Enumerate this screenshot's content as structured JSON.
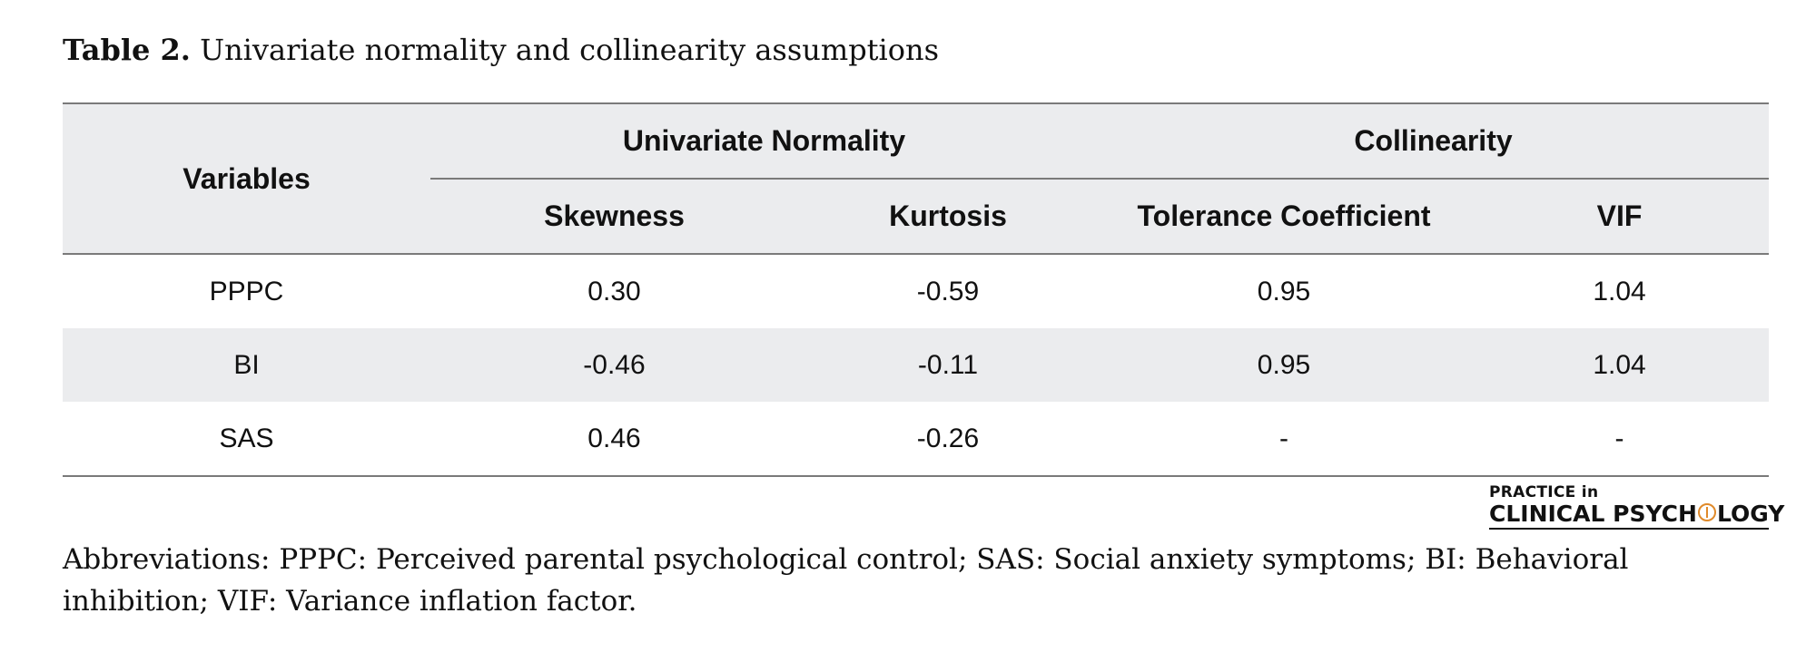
{
  "caption": {
    "label": "Table 2.",
    "text": "Univariate normality and collinearity assumptions"
  },
  "table": {
    "header": {
      "variables": "Variables",
      "group_normality": "Univariate Normality",
      "group_collinearity": "Collinearity",
      "skewness": "Skewness",
      "kurtosis": "Kurtosis",
      "tolerance": "Tolerance Coefficient",
      "vif": "VIF"
    },
    "rows": [
      {
        "variable": "PPPC",
        "skewness": "0.30",
        "kurtosis": "-0.59",
        "tolerance": "0.95",
        "vif": "1.04"
      },
      {
        "variable": "BI",
        "skewness": "-0.46",
        "kurtosis": "-0.11",
        "tolerance": "0.95",
        "vif": "1.04"
      },
      {
        "variable": "SAS",
        "skewness": "0.46",
        "kurtosis": "-0.26",
        "tolerance": "-",
        "vif": "-"
      }
    ]
  },
  "logo": {
    "line1": "PRACTICE in",
    "line2_a": "CLINICAL PSYCH",
    "line2_b": "LOGY",
    "accent_color": "#e08a2a"
  },
  "abbreviations": "Abbreviations: PPPC: Perceived parental psychological control; SAS: Social anxiety symptoms; BI: Behavioral inhibition; VIF: Variance inflation factor."
}
